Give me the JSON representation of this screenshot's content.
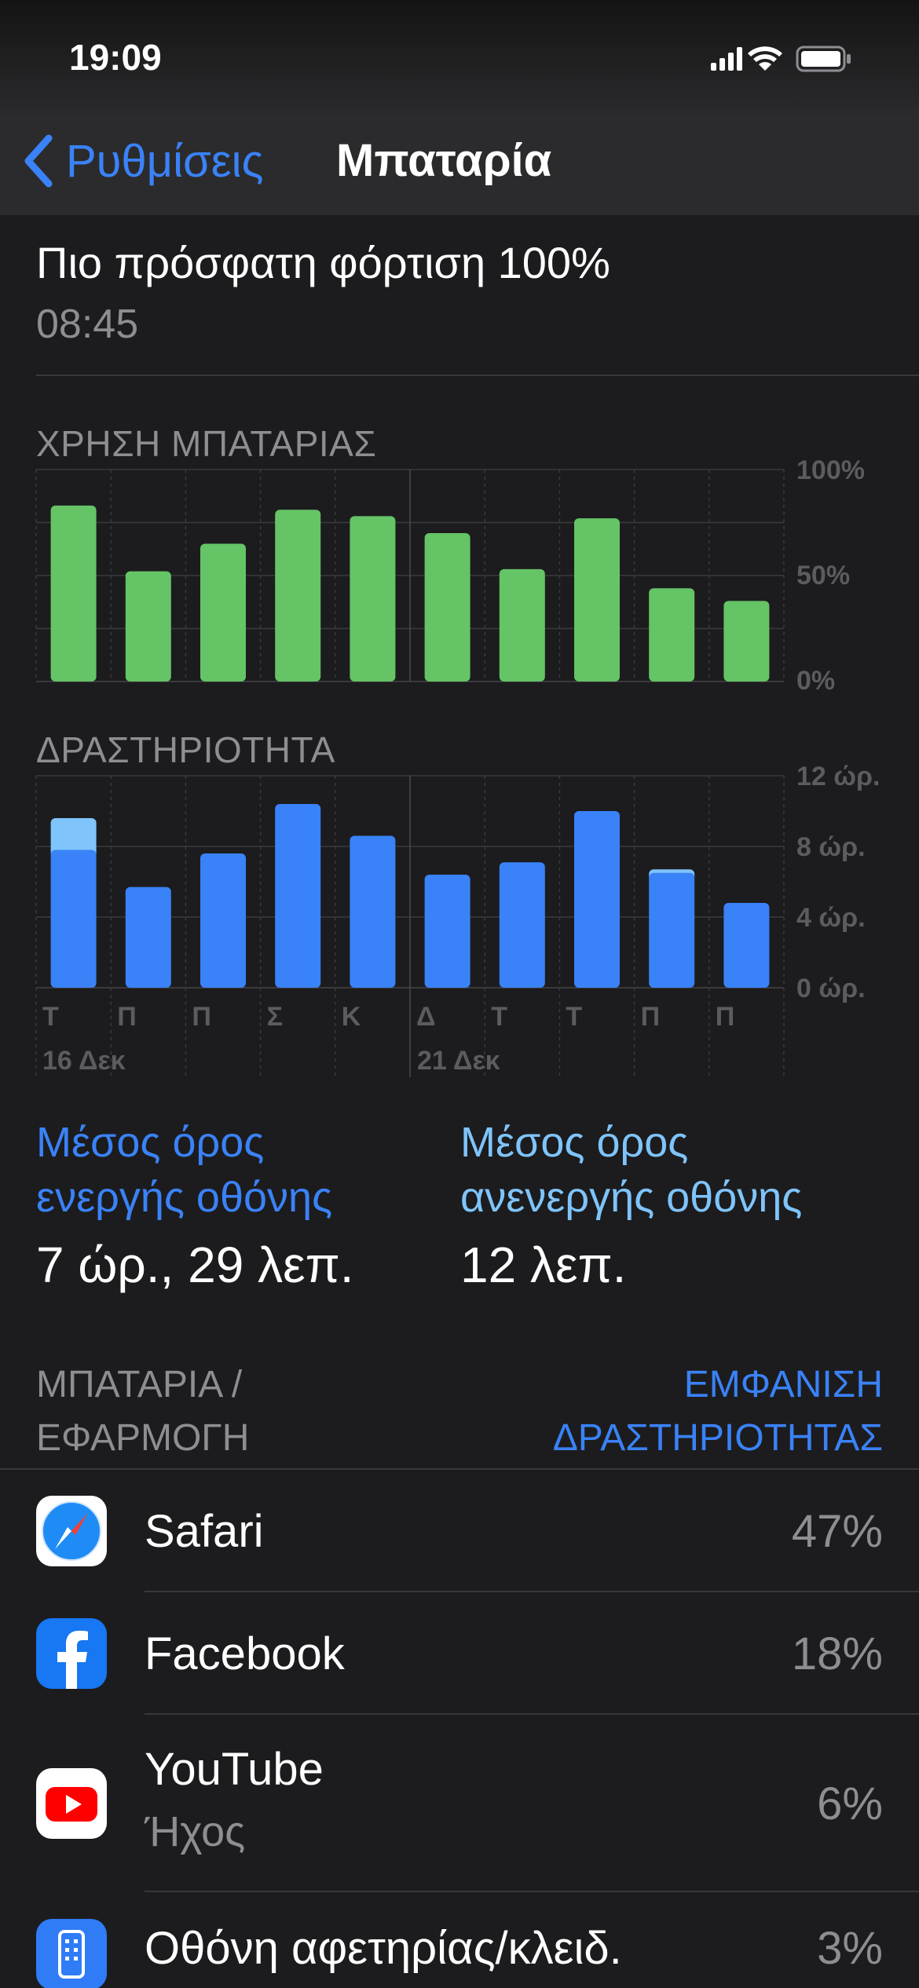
{
  "status_bar": {
    "time": "19:09"
  },
  "nav": {
    "back_label": "Ρυθμίσεις",
    "title": "Μπαταρία"
  },
  "last_charge": {
    "title": "Πιο πρόσφατη φόρτιση 100%",
    "time": "08:45"
  },
  "colors": {
    "accent": "#3a82f7",
    "battery_bar": "#65c466",
    "screen_on": "#3a82f7",
    "screen_off": "#7fc4fb"
  },
  "battery_usage": {
    "label": "ΧΡΗΣΗ ΜΠΑΤΑΡΙΑΣ",
    "ticks": [
      "100%",
      "50%",
      "0%"
    ]
  },
  "activity": {
    "label": "ΔΡΑΣΤΗΡΙΟΤΗΤΑ",
    "ticks": [
      "12 ώρ.",
      "8 ώρ.",
      "4 ώρ.",
      "0 ώρ."
    ]
  },
  "days": [
    "Τ",
    "Π",
    "Π",
    "Σ",
    "Κ",
    "Δ",
    "Τ",
    "Τ",
    "Π",
    "Π"
  ],
  "dates": [
    "16 Δεκ",
    "21 Δεκ"
  ],
  "chart_data": [
    {
      "type": "bar",
      "title": "ΧΡΗΣΗ ΜΠΑΤΑΡΙΑΣ",
      "categories": [
        "Τ",
        "Π",
        "Π",
        "Σ",
        "Κ",
        "Δ",
        "Τ",
        "Τ",
        "Π",
        "Π"
      ],
      "values": [
        83,
        52,
        65,
        81,
        78,
        70,
        53,
        77,
        44,
        38
      ],
      "ylim": [
        0,
        100
      ],
      "unit": "%"
    },
    {
      "type": "bar",
      "title": "ΔΡΑΣΤΗΡΙΟΤΗΤΑ",
      "categories": [
        "Τ",
        "Π",
        "Π",
        "Σ",
        "Κ",
        "Δ",
        "Τ",
        "Τ",
        "Π",
        "Π"
      ],
      "series": [
        {
          "values": [
            7.8,
            5.7,
            7.6,
            10.4,
            8.6,
            6.4,
            7.1,
            10.0,
            6.5,
            4.8
          ]
        },
        {
          "values": [
            1.8,
            0,
            0,
            0,
            0,
            0,
            0,
            0,
            0.2,
            0
          ]
        }
      ],
      "stacked": true,
      "ylim": [
        0,
        12
      ],
      "unit": "ώρ."
    }
  ],
  "averages": {
    "screen_on_label": [
      "Μέσος όρος",
      "ενεργής οθόνης"
    ],
    "screen_on_value": "7 ώρ., 29 λεπ.",
    "screen_off_label": [
      "Μέσος όρος",
      "ανενεργής οθόνης"
    ],
    "screen_off_value": "12 λεπ."
  },
  "list_header": {
    "left": [
      "ΜΠΑΤΑΡΙΑ /",
      "ΕΦΑΡΜΟΓΗ"
    ],
    "right": [
      "ΕΜΦΑΝΙΣΗ",
      "ΔΡΑΣΤΗΡΙΟΤΗΤΑΣ"
    ]
  },
  "apps": [
    {
      "name": "Safari",
      "sub": "",
      "pct": "47%",
      "icon": "safari-icon"
    },
    {
      "name": "Facebook",
      "sub": "",
      "pct": "18%",
      "icon": "facebook-icon"
    },
    {
      "name": "YouTube",
      "sub": "Ήχος",
      "pct": "6%",
      "icon": "youtube-icon"
    },
    {
      "name": "Οθόνη αφετηρίας/κλειδ.",
      "sub": "",
      "pct": "3%",
      "icon": "home-screen-icon"
    }
  ]
}
